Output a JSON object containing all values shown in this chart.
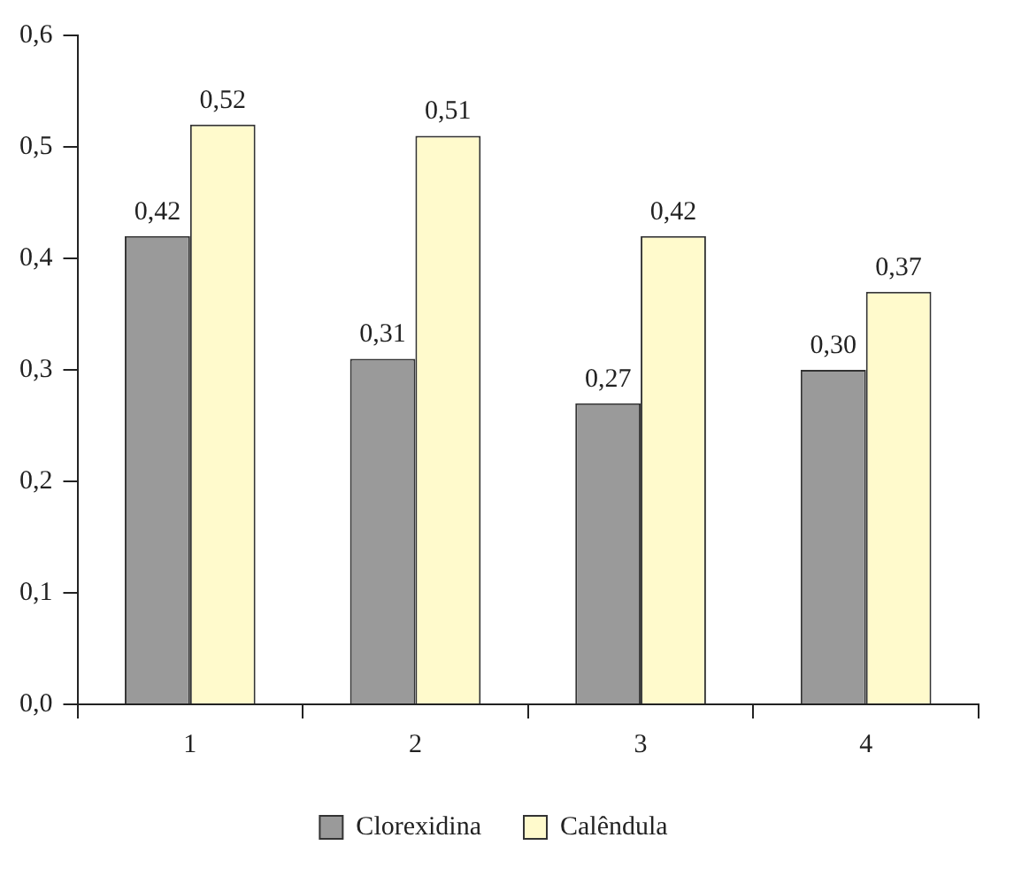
{
  "chart_data": {
    "type": "bar",
    "categories": [
      "1",
      "2",
      "3",
      "4"
    ],
    "series": [
      {
        "name": "Clorexidina",
        "color": "#9a9a9a",
        "values": [
          0.42,
          0.31,
          0.27,
          0.3
        ],
        "value_labels": [
          "0,42",
          "0,31",
          "0,27",
          "0,30"
        ]
      },
      {
        "name": "Calêndula",
        "color": "#fffacc",
        "values": [
          0.52,
          0.51,
          0.42,
          0.37
        ],
        "value_labels": [
          "0,52",
          "0,51",
          "0,42",
          "0,37"
        ]
      }
    ],
    "ylim": [
      0,
      0.6
    ],
    "yticks": [
      {
        "value": 0,
        "label": "0,0"
      },
      {
        "value": 0.1,
        "label": "0,1"
      },
      {
        "value": 0.2,
        "label": "0,2"
      },
      {
        "value": 0.3,
        "label": "0,3"
      },
      {
        "value": 0.4,
        "label": "0,4"
      },
      {
        "value": 0.5,
        "label": "0,5"
      },
      {
        "value": 0.6,
        "label": "0,6"
      }
    ],
    "grid": false,
    "legend": "bottom"
  }
}
